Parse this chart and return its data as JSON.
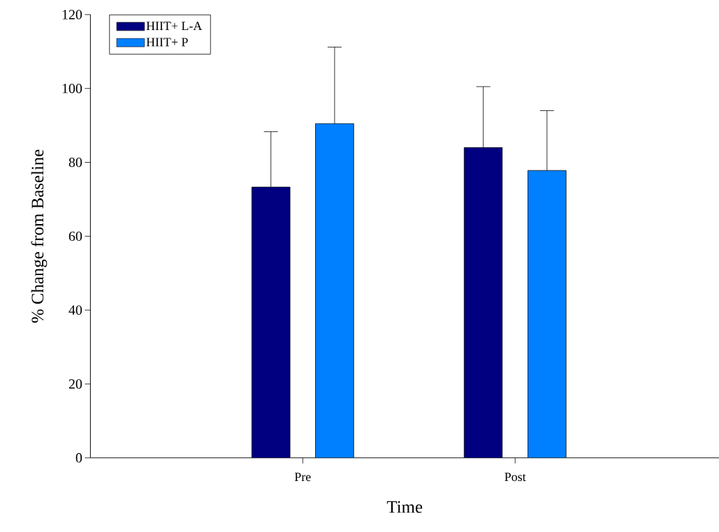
{
  "chart_data": {
    "type": "bar",
    "xlabel": "Time",
    "ylabel": "% Change from Baseline",
    "categories": [
      "Pre",
      "Post"
    ],
    "series": [
      {
        "name": "HIIT+ L-A",
        "color": "#000080",
        "values": [
          73.3,
          84.0
        ],
        "errors": [
          [
            73.3,
            88.3
          ],
          [
            84.0,
            100.5
          ]
        ]
      },
      {
        "name": "HIIT+ P",
        "color": "#0080ff",
        "values": [
          90.5,
          77.8
        ],
        "errors": [
          [
            90.5,
            111.2
          ],
          [
            77.8,
            94.0
          ]
        ]
      }
    ],
    "ylim": [
      0,
      120
    ],
    "yticks": [
      0,
      20,
      40,
      60,
      80,
      100,
      120
    ],
    "grid": false,
    "legend": "top left"
  }
}
